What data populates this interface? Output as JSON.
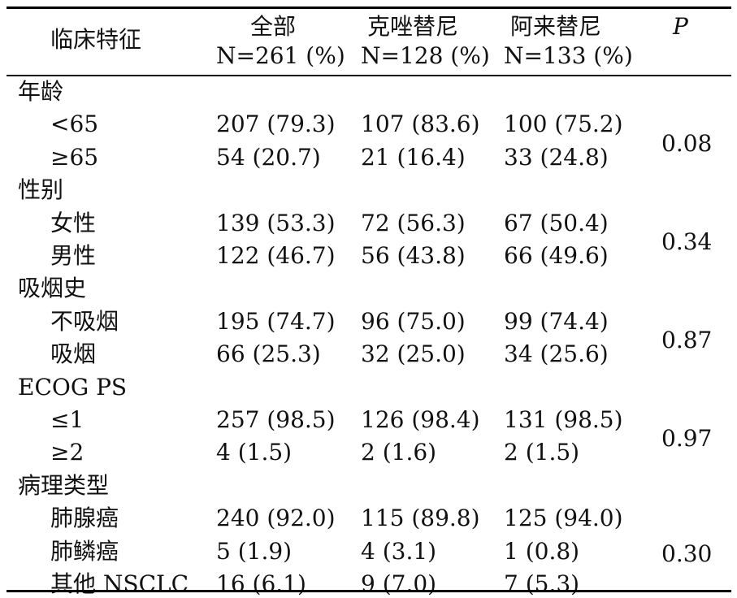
{
  "header": {
    "col1": "临床特征",
    "col2_line1": "全部",
    "col2_line2": "N=261 (%)",
    "col3_line1": "克唑替尼",
    "col3_line2": "N=128 (%)",
    "col4_line1": "阿来替尼",
    "col4_line2": "N=133 (%)",
    "col5": "P"
  },
  "sections": [
    {
      "label": "年龄",
      "p": "0.08",
      "rows": [
        {
          "label": "<65",
          "all": "207 (79.3)",
          "crizotinib": "107 (83.6)",
          "alectinib": "100 (75.2)"
        },
        {
          "label": "≥65",
          "all": "54 (20.7)",
          "crizotinib": "21 (16.4)",
          "alectinib": "33 (24.8)"
        }
      ]
    },
    {
      "label": "性别",
      "p": "0.34",
      "rows": [
        {
          "label": "女性",
          "all": "139 (53.3)",
          "crizotinib": "72 (56.3)",
          "alectinib": "67 (50.4)"
        },
        {
          "label": "男性",
          "all": "122 (46.7)",
          "crizotinib": "56 (43.8)",
          "alectinib": "66 (49.6)"
        }
      ]
    },
    {
      "label": "吸烟史",
      "p": "0.87",
      "rows": [
        {
          "label": "不吸烟",
          "all": "195 (74.7)",
          "crizotinib": "96 (75.0)",
          "alectinib": "99 (74.4)"
        },
        {
          "label": "吸烟",
          "all": "66 (25.3)",
          "crizotinib": "32 (25.0)",
          "alectinib": "34 (25.6)"
        }
      ]
    },
    {
      "label": "ECOG PS",
      "p": "0.97",
      "rows": [
        {
          "label": "≤1",
          "all": "257 (98.5)",
          "crizotinib": "126 (98.4)",
          "alectinib": "131 (98.5)"
        },
        {
          "label": "≥2",
          "all": "4 (1.5)",
          "crizotinib": "2 (1.6)",
          "alectinib": "2 (1.5)"
        }
      ]
    },
    {
      "label": "病理类型",
      "p": "0.30",
      "rows": [
        {
          "label": "肺腺癌",
          "all": "240 (92.0)",
          "crizotinib": "115 (89.8)",
          "alectinib": "125 (94.0)"
        },
        {
          "label": "肺鳞癌",
          "all": "5 (1.9)",
          "crizotinib": "4 (3.1)",
          "alectinib": "1 (0.8)"
        },
        {
          "label": "其他 NSCLC",
          "all": "16 (6.1)",
          "crizotinib": "9 (7.0)",
          "alectinib": "7 (5.3)"
        }
      ]
    }
  ]
}
